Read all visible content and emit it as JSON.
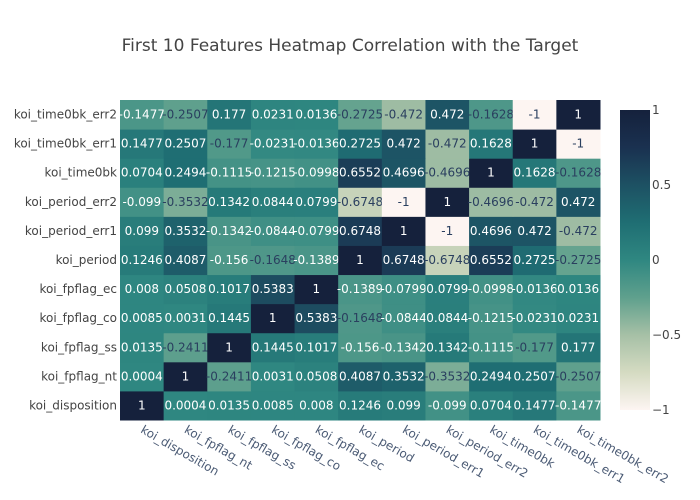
{
  "chart_data": {
    "type": "heatmap",
    "title": "First 10 Features Heatmap Correlation with the Target",
    "colorscale": [
      "#fdf5f2",
      "#d5dbc2",
      "#a6c0a6",
      "#5fa08d",
      "#2f8781",
      "#1f6e73",
      "#1d5163",
      "#1a3150",
      "#15213c"
    ],
    "zmin": -1,
    "zmax": 1,
    "x_labels": [
      "koi_disposition",
      "koi_fpflag_nt",
      "koi_fpflag_ss",
      "koi_fpflag_co",
      "koi_fpflag_ec",
      "koi_period",
      "koi_period_err1",
      "koi_period_err2",
      "koi_time0bk",
      "koi_time0bk_err1",
      "koi_time0bk_err2"
    ],
    "y_labels": [
      "koi_disposition",
      "koi_fpflag_nt",
      "koi_fpflag_ss",
      "koi_fpflag_co",
      "koi_fpflag_ec",
      "koi_period",
      "koi_period_err1",
      "koi_period_err2",
      "koi_time0bk",
      "koi_time0bk_err1",
      "koi_time0bk_err2"
    ],
    "z": [
      [
        1,
        0.0004,
        0.0135,
        0.0085,
        0.008,
        0.1246,
        0.099,
        -0.099,
        0.0704,
        0.1477,
        -0.1477
      ],
      [
        0.0004,
        1,
        -0.2411,
        0.0031,
        0.0508,
        0.4087,
        0.3532,
        -0.3532,
        0.2494,
        0.2507,
        -0.2507
      ],
      [
        0.0135,
        -0.2411,
        1,
        0.1445,
        0.1017,
        -0.156,
        -0.1342,
        0.1342,
        -0.1115,
        -0.177,
        0.177
      ],
      [
        0.0085,
        0.0031,
        0.1445,
        1,
        0.5383,
        -0.1648,
        -0.0844,
        0.0844,
        -0.1215,
        -0.0231,
        0.0231
      ],
      [
        0.008,
        0.0508,
        0.1017,
        0.5383,
        1,
        -0.1389,
        -0.0799,
        0.0799,
        -0.0998,
        -0.0136,
        0.0136
      ],
      [
        0.1246,
        0.4087,
        -0.156,
        -0.1648,
        -0.1389,
        1,
        0.6748,
        -0.6748,
        0.6552,
        0.2725,
        -0.2725
      ],
      [
        0.099,
        0.3532,
        -0.1342,
        -0.0844,
        -0.0799,
        0.6748,
        1,
        -1,
        0.4696,
        0.472,
        -0.472
      ],
      [
        -0.099,
        -0.3532,
        0.1342,
        0.0844,
        0.0799,
        -0.6748,
        -1,
        1,
        -0.4696,
        -0.472,
        0.472
      ],
      [
        0.0704,
        0.2494,
        -0.1115,
        -0.1215,
        -0.0998,
        0.6552,
        0.4696,
        -0.4696,
        1,
        0.1628,
        -0.1628
      ],
      [
        0.1477,
        0.2507,
        -0.177,
        -0.0231,
        -0.0136,
        0.2725,
        0.472,
        -0.472,
        0.1628,
        1,
        -1
      ],
      [
        -0.1477,
        -0.2507,
        0.177,
        0.0231,
        0.0136,
        -0.2725,
        -0.472,
        0.472,
        -0.1628,
        -1,
        1
      ]
    ],
    "colorbar_ticks": [
      {
        "value": 1,
        "label": "1"
      },
      {
        "value": 0.5,
        "label": "0.5"
      },
      {
        "value": 0,
        "label": "0"
      },
      {
        "value": -0.5,
        "label": "−0.5"
      },
      {
        "value": -1,
        "label": "−1"
      }
    ]
  }
}
